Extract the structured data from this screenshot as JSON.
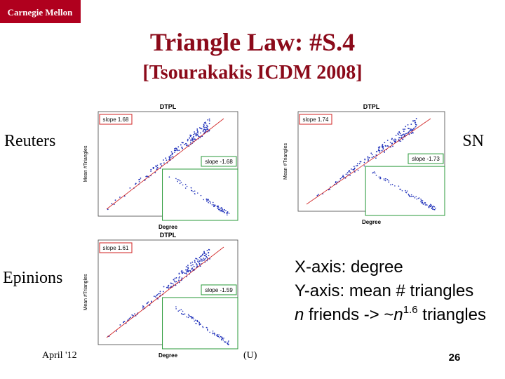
{
  "header": {
    "logo": "Carnegie Mellon",
    "title": "Triangle Law: #S.4",
    "subtitle": "[Tsourakakis ICDM 2008]"
  },
  "plots": [
    {
      "label": "Reuters",
      "title": "DTPL",
      "slope": "slope 1.68",
      "inset_slope": "slope -1.68",
      "x_label": "Degree",
      "y_label": "Mean #Triangles"
    },
    {
      "label": "SN",
      "title": "DTPL",
      "slope": "slope 1.74",
      "inset_slope": "slope -1.73",
      "x_label": "Degree",
      "y_label": "Mean #Triangles"
    },
    {
      "label": "Epinions",
      "title": "DTPL",
      "slope": "slope 1.61",
      "inset_slope": "slope -1.59",
      "x_label": "Degree",
      "y_label": "Mean #Triangles"
    }
  ],
  "notes": [
    "X-axis: degree",
    "Y-axis: mean # triangles"
  ],
  "rule": {
    "var": "n",
    "friends": " friends -> ~",
    "exponent": "1.6",
    "tail": " triangles"
  },
  "footer": {
    "date": "April '12",
    "author": "(U)",
    "page": "26"
  }
}
